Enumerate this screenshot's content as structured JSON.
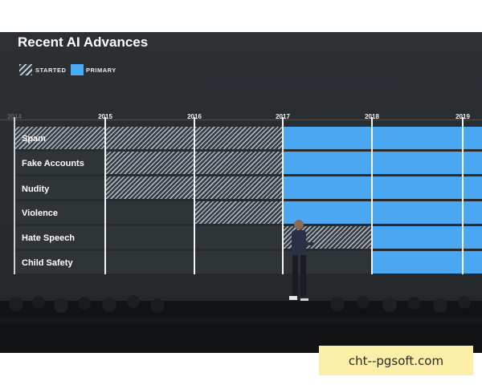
{
  "title": "Recent AI Advances",
  "legend": {
    "started": "STARTED",
    "primary": "PRIMARY"
  },
  "years": [
    "2014",
    "2015",
    "2016",
    "2017",
    "2018",
    "2019"
  ],
  "rows": [
    {
      "label": "Spam"
    },
    {
      "label": "Fake Accounts"
    },
    {
      "label": "Nudity"
    },
    {
      "label": "Violence"
    },
    {
      "label": "Hate Speech"
    },
    {
      "label": "Child Safety"
    }
  ],
  "watermark": "cht--pgsoft.com",
  "colors": {
    "primary": "#4aa8f2",
    "background": "#2c3033"
  }
}
